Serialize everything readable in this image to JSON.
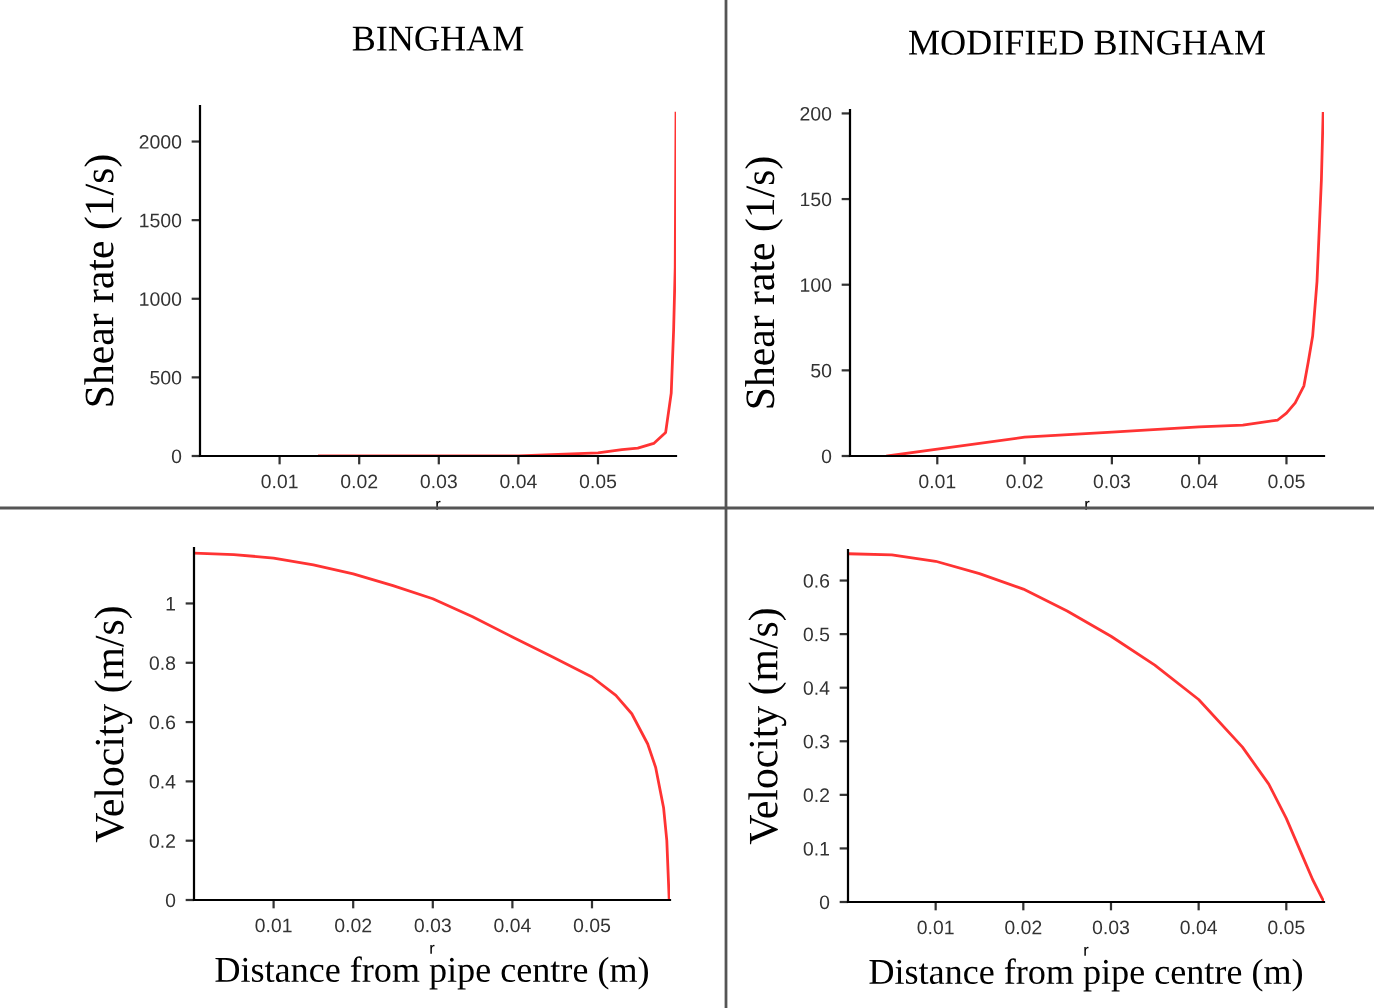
{
  "chart_data": [
    {
      "type": "line",
      "title": "BINGHAM",
      "xlabel": "r",
      "ylabel": "Shear rate (1/s)",
      "xlim": [
        0,
        0.0598
      ],
      "ylim": [
        0,
        2226
      ],
      "xticks": [
        0.01,
        0.02,
        0.03,
        0.04,
        0.05
      ],
      "yticks": [
        0,
        500,
        1000,
        1500,
        2000
      ],
      "series": [
        {
          "color": "#ff3333",
          "x": [
            0.015,
            0.02,
            0.03,
            0.04,
            0.045,
            0.05,
            0.053,
            0.055,
            0.057,
            0.0585,
            0.0592,
            0.0595,
            0.0597,
            0.0598
          ],
          "values": [
            0,
            0,
            0,
            0,
            10,
            20,
            40,
            50,
            80,
            150,
            400,
            800,
            1200,
            2180
          ]
        }
      ]
    },
    {
      "type": "line",
      "title": "MODIFIED BINGHAM",
      "xlabel": "r",
      "ylabel": "Shear rate (1/s)",
      "xlim": [
        0,
        0.0543
      ],
      "ylim": [
        0,
        202
      ],
      "xticks": [
        0.01,
        0.02,
        0.03,
        0.04,
        0.05
      ],
      "yticks": [
        0,
        50,
        100,
        150,
        200
      ],
      "series": [
        {
          "color": "#ff3333",
          "x": [
            0.0043,
            0.01,
            0.02,
            0.03,
            0.04,
            0.045,
            0.049,
            0.05,
            0.051,
            0.052,
            0.0525,
            0.053,
            0.0535,
            0.054,
            0.0542
          ],
          "values": [
            0,
            4,
            11,
            14,
            17,
            18,
            21,
            25,
            31,
            41,
            55,
            70,
            102,
            161,
            200
          ]
        }
      ]
    },
    {
      "type": "line",
      "xlabel": "r",
      "ylabel": "Velocity (m/s)",
      "annotations": [
        "Distance from pipe centre (m)"
      ],
      "xlim": [
        0,
        0.0598
      ],
      "ylim": [
        0,
        1.187
      ],
      "xticks": [
        0.01,
        0.02,
        0.03,
        0.04,
        0.05
      ],
      "yticks": [
        0,
        0.2,
        0.4,
        0.6,
        0.8,
        1
      ],
      "series": [
        {
          "color": "#ff3333",
          "x": [
            0,
            0.005,
            0.01,
            0.015,
            0.02,
            0.025,
            0.03,
            0.035,
            0.04,
            0.045,
            0.05,
            0.053,
            0.055,
            0.057,
            0.058,
            0.059,
            0.0594,
            0.0597
          ],
          "values": [
            1.17,
            1.165,
            1.153,
            1.13,
            1.1,
            1.06,
            1.016,
            0.955,
            0.887,
            0.82,
            0.752,
            0.69,
            0.628,
            0.526,
            0.447,
            0.31,
            0.2,
            0
          ]
        }
      ]
    },
    {
      "type": "line",
      "xlabel": "r",
      "ylabel": "Velocity (m/s)",
      "annotations": [
        "Distance from pipe centre (m)"
      ],
      "xlim": [
        0,
        0.0543
      ],
      "ylim": [
        0,
        0.657
      ],
      "xticks": [
        0.01,
        0.02,
        0.03,
        0.04,
        0.05
      ],
      "yticks": [
        0,
        0.1,
        0.2,
        0.3,
        0.4,
        0.5,
        0.6
      ],
      "series": [
        {
          "color": "#ff3333",
          "x": [
            0,
            0.005,
            0.01,
            0.015,
            0.02,
            0.025,
            0.03,
            0.035,
            0.04,
            0.045,
            0.048,
            0.05,
            0.052,
            0.053,
            0.0543
          ],
          "values": [
            0.65,
            0.648,
            0.636,
            0.613,
            0.584,
            0.543,
            0.496,
            0.442,
            0.378,
            0.289,
            0.22,
            0.156,
            0.08,
            0.042,
            0
          ]
        }
      ]
    }
  ]
}
